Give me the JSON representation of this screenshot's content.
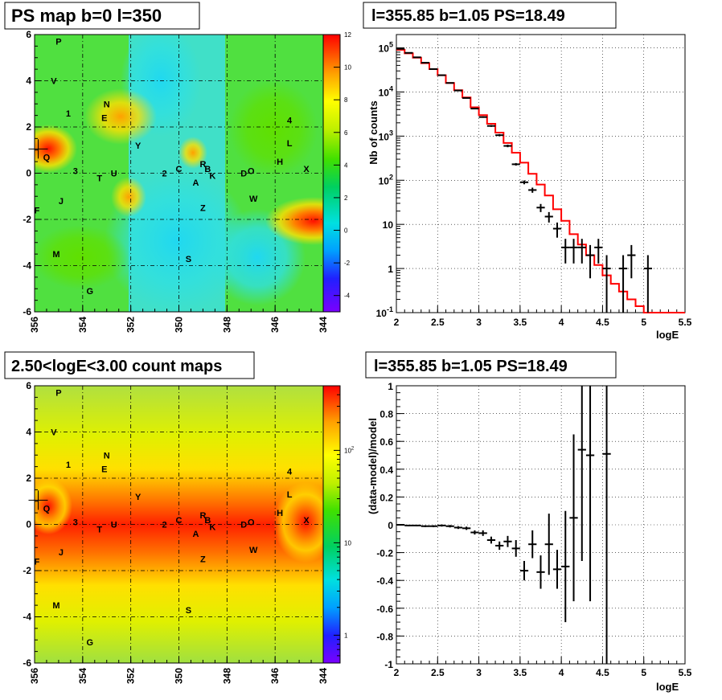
{
  "panels": {
    "tl_title": "PS map b=0 l=350",
    "tr_title": "l=355.85 b=1.05 PS=18.49",
    "bl_title": "2.50<logE<3.00 count maps",
    "br_title": "l=355.85 b=1.05 PS=18.49"
  },
  "colors": {
    "model_line": "#ff0000",
    "data_marker": "#000000"
  },
  "chart_data": [
    {
      "type": "heatmap",
      "title": "PS map b=0 l=350",
      "x_ticks": [
        "356",
        "354",
        "352",
        "350",
        "348",
        "346",
        "344"
      ],
      "y_ticks": [
        "6",
        "4",
        "2",
        "0",
        "-2",
        "-4",
        "-6"
      ],
      "xlim": [
        356,
        344
      ],
      "ylim": [
        -6,
        6
      ],
      "colorbar_ticks": [
        "12",
        "10",
        "8",
        "6",
        "4",
        "2",
        "0",
        "-2",
        "-4"
      ],
      "colorbar_range": [
        -5,
        12
      ],
      "grid": true,
      "sources": [
        {
          "name": "P",
          "l": 355.0,
          "b": 5.7
        },
        {
          "name": "V",
          "l": 355.2,
          "b": 4.0
        },
        {
          "name": "1",
          "l": 354.6,
          "b": 2.6
        },
        {
          "name": "N",
          "l": 353.0,
          "b": 3.0
        },
        {
          "name": "E",
          "l": 353.1,
          "b": 2.4
        },
        {
          "name": "Y",
          "l": 351.7,
          "b": 1.2
        },
        {
          "name": "Q",
          "l": 355.5,
          "b": 0.7
        },
        {
          "name": "3",
          "l": 354.3,
          "b": 0.1
        },
        {
          "name": "T",
          "l": 353.3,
          "b": -0.2
        },
        {
          "name": "U",
          "l": 352.7,
          "b": 0.0
        },
        {
          "name": "2",
          "l": 350.6,
          "b": 0.0
        },
        {
          "name": "C",
          "l": 350.0,
          "b": 0.2
        },
        {
          "name": "R",
          "l": 349.0,
          "b": 0.4
        },
        {
          "name": "B",
          "l": 348.8,
          "b": 0.2
        },
        {
          "name": "K",
          "l": 348.6,
          "b": -0.1
        },
        {
          "name": "A",
          "l": 349.3,
          "b": -0.4
        },
        {
          "name": "D",
          "l": 347.3,
          "b": 0.0
        },
        {
          "name": "O",
          "l": 347.0,
          "b": 0.1
        },
        {
          "name": "H",
          "l": 345.8,
          "b": 0.5
        },
        {
          "name": "X",
          "l": 344.7,
          "b": 0.2
        },
        {
          "name": "L",
          "l": 345.4,
          "b": 1.3
        },
        {
          "name": "4",
          "l": 345.4,
          "b": 2.3
        },
        {
          "name": "W",
          "l": 346.9,
          "b": -1.1
        },
        {
          "name": "Z",
          "l": 349.0,
          "b": -1.5
        },
        {
          "name": "J",
          "l": 354.9,
          "b": -1.2
        },
        {
          "name": "F",
          "l": 355.9,
          "b": -1.6
        },
        {
          "name": "M",
          "l": 355.1,
          "b": -3.5
        },
        {
          "name": "S",
          "l": 349.6,
          "b": -3.7
        },
        {
          "name": "G",
          "l": 353.7,
          "b": -5.1
        }
      ]
    },
    {
      "type": "line",
      "title": "l=355.85 b=1.05 PS=18.49",
      "xlabel": "logE",
      "ylabel": "Nb of counts",
      "xlim": [
        2,
        5.5
      ],
      "ylim": [
        0.1,
        200000
      ],
      "yscale": "log",
      "x_ticks": [
        "2",
        "2.5",
        "3",
        "3.5",
        "4",
        "4.5",
        "5",
        "5.5"
      ],
      "y_ticks": [
        "10^-1",
        "1",
        "10",
        "10^2",
        "10^3",
        "10^4",
        "10^5"
      ],
      "grid": true,
      "model_steps": [
        {
          "x0": 2.0,
          "x1": 2.1,
          "y": 90000
        },
        {
          "x0": 2.1,
          "x1": 2.2,
          "y": 75000
        },
        {
          "x0": 2.2,
          "x1": 2.3,
          "y": 60000
        },
        {
          "x0": 2.3,
          "x1": 2.4,
          "y": 45000
        },
        {
          "x0": 2.4,
          "x1": 2.5,
          "y": 33000
        },
        {
          "x0": 2.5,
          "x1": 2.6,
          "y": 24000
        },
        {
          "x0": 2.6,
          "x1": 2.7,
          "y": 16000
        },
        {
          "x0": 2.7,
          "x1": 2.8,
          "y": 11000
        },
        {
          "x0": 2.8,
          "x1": 2.9,
          "y": 7500
        },
        {
          "x0": 2.9,
          "x1": 3.0,
          "y": 4500
        },
        {
          "x0": 3.0,
          "x1": 3.1,
          "y": 3000
        },
        {
          "x0": 3.1,
          "x1": 3.2,
          "y": 1900
        },
        {
          "x0": 3.2,
          "x1": 3.3,
          "y": 1200
        },
        {
          "x0": 3.3,
          "x1": 3.4,
          "y": 700
        },
        {
          "x0": 3.4,
          "x1": 3.5,
          "y": 420
        },
        {
          "x0": 3.5,
          "x1": 3.6,
          "y": 250
        },
        {
          "x0": 3.6,
          "x1": 3.7,
          "y": 140
        },
        {
          "x0": 3.7,
          "x1": 3.8,
          "y": 80
        },
        {
          "x0": 3.8,
          "x1": 3.9,
          "y": 45
        },
        {
          "x0": 3.9,
          "x1": 4.0,
          "y": 22
        },
        {
          "x0": 4.0,
          "x1": 4.1,
          "y": 12
        },
        {
          "x0": 4.1,
          "x1": 4.2,
          "y": 6
        },
        {
          "x0": 4.2,
          "x1": 4.3,
          "y": 3.5
        },
        {
          "x0": 4.3,
          "x1": 4.4,
          "y": 2.0
        },
        {
          "x0": 4.4,
          "x1": 4.5,
          "y": 1.2
        },
        {
          "x0": 4.5,
          "x1": 4.6,
          "y": 0.7
        },
        {
          "x0": 4.6,
          "x1": 4.7,
          "y": 0.45
        },
        {
          "x0": 4.7,
          "x1": 4.8,
          "y": 0.3
        },
        {
          "x0": 4.8,
          "x1": 4.9,
          "y": 0.2
        },
        {
          "x0": 4.9,
          "x1": 5.0,
          "y": 0.14
        },
        {
          "x0": 5.0,
          "x1": 5.1,
          "y": 0.1
        },
        {
          "x0": 5.1,
          "x1": 5.5,
          "y": 0.1
        }
      ],
      "data_points": [
        {
          "x": 2.05,
          "y": 95000,
          "ylo": 94000,
          "yhi": 96000
        },
        {
          "x": 2.15,
          "y": 77000,
          "ylo": 76000,
          "yhi": 78000
        },
        {
          "x": 2.25,
          "y": 61000,
          "ylo": 60000,
          "yhi": 62000
        },
        {
          "x": 2.35,
          "y": 46000,
          "ylo": 45000,
          "yhi": 47000
        },
        {
          "x": 2.45,
          "y": 33000,
          "ylo": 32500,
          "yhi": 33500
        },
        {
          "x": 2.55,
          "y": 24000,
          "ylo": 23500,
          "yhi": 24500
        },
        {
          "x": 2.65,
          "y": 16000,
          "ylo": 15700,
          "yhi": 16300
        },
        {
          "x": 2.75,
          "y": 10800,
          "ylo": 10500,
          "yhi": 11100
        },
        {
          "x": 2.85,
          "y": 7300,
          "ylo": 7100,
          "yhi": 7500
        },
        {
          "x": 2.95,
          "y": 4200,
          "ylo": 4050,
          "yhi": 4350
        },
        {
          "x": 3.05,
          "y": 2700,
          "ylo": 2600,
          "yhi": 2800
        },
        {
          "x": 3.15,
          "y": 1700,
          "ylo": 1620,
          "yhi": 1780
        },
        {
          "x": 3.25,
          "y": 1050,
          "ylo": 990,
          "yhi": 1110
        },
        {
          "x": 3.35,
          "y": 600,
          "ylo": 560,
          "yhi": 640
        },
        {
          "x": 3.45,
          "y": 230,
          "ylo": 215,
          "yhi": 245
        },
        {
          "x": 3.55,
          "y": 90,
          "ylo": 81,
          "yhi": 99
        },
        {
          "x": 3.65,
          "y": 60,
          "ylo": 52,
          "yhi": 68
        },
        {
          "x": 3.75,
          "y": 24,
          "ylo": 19,
          "yhi": 29
        },
        {
          "x": 3.85,
          "y": 15,
          "ylo": 11,
          "yhi": 19
        },
        {
          "x": 3.95,
          "y": 8,
          "ylo": 5,
          "yhi": 11
        },
        {
          "x": 4.05,
          "y": 3,
          "ylo": 1.3,
          "yhi": 4.7
        },
        {
          "x": 4.15,
          "y": 3,
          "ylo": 1.3,
          "yhi": 4.7
        },
        {
          "x": 4.25,
          "y": 3,
          "ylo": 1.3,
          "yhi": 4.7
        },
        {
          "x": 4.35,
          "y": 2,
          "ylo": 0.6,
          "yhi": 3.4
        },
        {
          "x": 4.45,
          "y": 3,
          "ylo": 1.3,
          "yhi": 4.7
        },
        {
          "x": 4.55,
          "y": 1,
          "ylo": 0.1,
          "yhi": 2.0
        },
        {
          "x": 4.75,
          "y": 1,
          "ylo": 0.1,
          "yhi": 2.0
        },
        {
          "x": 4.85,
          "y": 2,
          "ylo": 0.6,
          "yhi": 3.4
        },
        {
          "x": 5.05,
          "y": 1,
          "ylo": 0.1,
          "yhi": 2.0
        }
      ]
    },
    {
      "type": "heatmap",
      "title": "2.50<logE<3.00 count maps",
      "x_ticks": [
        "356",
        "354",
        "352",
        "350",
        "348",
        "346",
        "344"
      ],
      "y_ticks": [
        "6",
        "4",
        "2",
        "0",
        "-2",
        "-4",
        "-6"
      ],
      "xlim": [
        356,
        344
      ],
      "ylim": [
        -6,
        6
      ],
      "colorbar_ticks": [
        "10^2",
        "10",
        "1"
      ],
      "colorbar_scale": "log",
      "colorbar_range": [
        0.5,
        500
      ],
      "grid": true,
      "sources_same_as_panel": 1
    },
    {
      "type": "scatter",
      "title": "l=355.85 b=1.05 PS=18.49",
      "xlabel": "logE",
      "ylabel": "(data-model)/model",
      "xlim": [
        2,
        5.5
      ],
      "ylim": [
        -1,
        1
      ],
      "x_ticks": [
        "2",
        "2.5",
        "3",
        "3.5",
        "4",
        "4.5",
        "5",
        "5.5"
      ],
      "y_ticks": [
        "-1",
        "-0.8",
        "-0.6",
        "-0.4",
        "-0.2",
        "0",
        "0.2",
        "0.4",
        "0.6",
        "0.8",
        "1"
      ],
      "grid": true,
      "points": [
        {
          "x": 2.05,
          "y": 0.0,
          "err": 0.004
        },
        {
          "x": 2.15,
          "y": -0.005,
          "err": 0.005
        },
        {
          "x": 2.25,
          "y": -0.005,
          "err": 0.005
        },
        {
          "x": 2.35,
          "y": -0.01,
          "err": 0.006
        },
        {
          "x": 2.45,
          "y": -0.01,
          "err": 0.007
        },
        {
          "x": 2.55,
          "y": -0.005,
          "err": 0.008
        },
        {
          "x": 2.65,
          "y": -0.01,
          "err": 0.009
        },
        {
          "x": 2.75,
          "y": -0.02,
          "err": 0.01
        },
        {
          "x": 2.85,
          "y": -0.025,
          "err": 0.012
        },
        {
          "x": 2.95,
          "y": -0.055,
          "err": 0.015
        },
        {
          "x": 3.05,
          "y": -0.06,
          "err": 0.02
        },
        {
          "x": 3.15,
          "y": -0.11,
          "err": 0.025
        },
        {
          "x": 3.25,
          "y": -0.15,
          "err": 0.03
        },
        {
          "x": 3.35,
          "y": -0.12,
          "err": 0.04
        },
        {
          "x": 3.45,
          "y": -0.17,
          "err": 0.06
        },
        {
          "x": 3.55,
          "y": -0.33,
          "err": 0.07
        },
        {
          "x": 3.65,
          "y": -0.14,
          "err": 0.1
        },
        {
          "x": 3.75,
          "y": -0.34,
          "err": 0.12
        },
        {
          "x": 3.85,
          "y": -0.14,
          "err": 0.22
        },
        {
          "x": 3.95,
          "y": -0.32,
          "err": 0.14
        },
        {
          "x": 4.05,
          "y": -0.3,
          "err": 0.4
        },
        {
          "x": 4.15,
          "y": 0.05,
          "err": 0.6
        },
        {
          "x": 4.25,
          "y": 0.54,
          "err": 0.8
        },
        {
          "x": 4.35,
          "y": 0.5,
          "err": 1.05
        },
        {
          "x": 4.55,
          "y": 0.51,
          "err": 1.6
        }
      ]
    }
  ]
}
